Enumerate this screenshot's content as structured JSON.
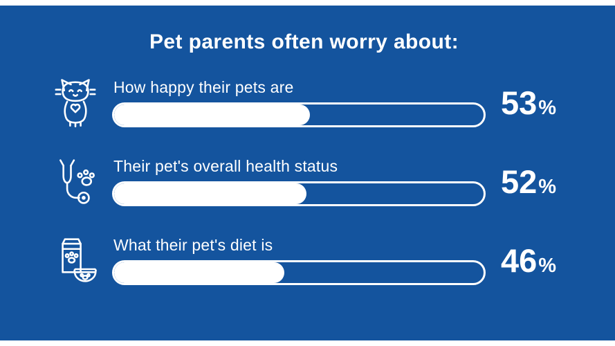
{
  "title": "Pet parents often worry about:",
  "colors": {
    "background": "#14549e",
    "text": "#ffffff",
    "bar_outline": "#ffffff",
    "bar_fill": "#ffffff"
  },
  "rows": [
    {
      "icon": "cat-icon",
      "label": "How happy their pets are",
      "value": 53,
      "value_label": "53",
      "unit": "%"
    },
    {
      "icon": "stethoscope-paw-icon",
      "label": "Their pet's overall health status",
      "value": 52,
      "value_label": "52",
      "unit": "%"
    },
    {
      "icon": "pet-food-icon",
      "label": "What their pet's diet is",
      "value": 46,
      "value_label": "46",
      "unit": "%"
    }
  ],
  "chart_data": {
    "type": "bar",
    "orientation": "horizontal",
    "title": "Pet parents often worry about:",
    "categories": [
      "How happy their pets are",
      "Their pet's overall health status",
      "What their pet's diet is"
    ],
    "values": [
      53,
      52,
      46
    ],
    "unit": "%",
    "xlim": [
      0,
      100
    ],
    "grid": false,
    "legend": false
  }
}
